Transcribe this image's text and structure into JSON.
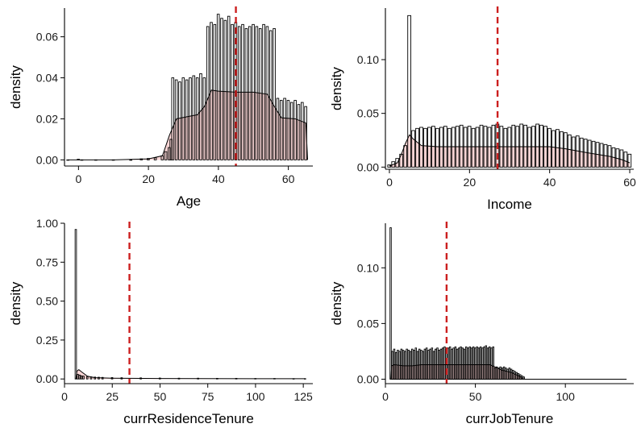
{
  "chart_data": [
    {
      "type": "histogram",
      "panel": "top-left",
      "xlabel": "Age",
      "ylabel": "density",
      "xlim": [
        -4,
        67
      ],
      "ylim": [
        -0.003,
        0.074
      ],
      "xticks": [
        0,
        20,
        40,
        60
      ],
      "yticks": [
        0.0,
        0.02,
        0.04,
        0.06
      ],
      "ytick_labels": [
        "0.00",
        "0.02",
        "0.04",
        "0.06"
      ],
      "bin_width": 0.7,
      "mean_line": 45,
      "hist_bins": [
        [
          -3,
          0
        ],
        [
          0,
          0.0003
        ],
        [
          1,
          0
        ],
        [
          5,
          0
        ],
        [
          10,
          0
        ],
        [
          15,
          0
        ],
        [
          18,
          0.0005
        ],
        [
          20,
          0.0007
        ],
        [
          22,
          0.001
        ],
        [
          24,
          0.002
        ],
        [
          25,
          0.004
        ],
        [
          26,
          0.006
        ],
        [
          26.5,
          0.01
        ],
        [
          27,
          0.04
        ],
        [
          28,
          0.039
        ],
        [
          29,
          0.038
        ],
        [
          30,
          0.04
        ],
        [
          31,
          0.039
        ],
        [
          32,
          0.04
        ],
        [
          33,
          0.041
        ],
        [
          34,
          0.04
        ],
        [
          35,
          0.042
        ],
        [
          36,
          0.04
        ],
        [
          37,
          0.065
        ],
        [
          38,
          0.067
        ],
        [
          39,
          0.066
        ],
        [
          40,
          0.071
        ],
        [
          41,
          0.069
        ],
        [
          42,
          0.068
        ],
        [
          43,
          0.07
        ],
        [
          44,
          0.066
        ],
        [
          45,
          0.067
        ],
        [
          46,
          0.065
        ],
        [
          47,
          0.066
        ],
        [
          48,
          0.064
        ],
        [
          49,
          0.065
        ],
        [
          50,
          0.066
        ],
        [
          51,
          0.065
        ],
        [
          52,
          0.064
        ],
        [
          53,
          0.066
        ],
        [
          54,
          0.065
        ],
        [
          55,
          0.063
        ],
        [
          56,
          0.064
        ],
        [
          57,
          0.03
        ],
        [
          58,
          0.029
        ],
        [
          59,
          0.03
        ],
        [
          60,
          0.029
        ],
        [
          61,
          0.028
        ],
        [
          62,
          0.029
        ],
        [
          63,
          0.027
        ],
        [
          64,
          0.028
        ],
        [
          65,
          0.026
        ]
      ],
      "density_curve": [
        [
          -3,
          0
        ],
        [
          10,
          0
        ],
        [
          20,
          0.0005
        ],
        [
          24,
          0.002
        ],
        [
          26,
          0.012
        ],
        [
          28,
          0.02
        ],
        [
          31,
          0.021
        ],
        [
          34,
          0.022
        ],
        [
          36,
          0.026
        ],
        [
          38,
          0.034
        ],
        [
          40,
          0.0335
        ],
        [
          45,
          0.033
        ],
        [
          50,
          0.033
        ],
        [
          54,
          0.032
        ],
        [
          56,
          0.026
        ],
        [
          58,
          0.0205
        ],
        [
          62,
          0.02
        ],
        [
          65,
          0.018
        ],
        [
          65.5,
          0
        ]
      ]
    },
    {
      "type": "histogram",
      "panel": "top-right",
      "xlabel": "Income",
      "ylabel": "density",
      "xlim": [
        -1,
        61
      ],
      "ylim": [
        -0.002,
        0.148
      ],
      "xticks": [
        0,
        20,
        40,
        60
      ],
      "yticks": [
        0.0,
        0.05,
        0.1
      ],
      "ytick_labels": [
        "0.00",
        "0.05",
        "0.10"
      ],
      "bin_width": 0.85,
      "mean_line": 27,
      "hist_bins": [
        [
          0,
          0.002
        ],
        [
          1,
          0.005
        ],
        [
          2,
          0.008
        ],
        [
          3,
          0.012
        ],
        [
          4,
          0.02
        ],
        [
          5,
          0.141
        ],
        [
          6,
          0.034
        ],
        [
          7,
          0.036
        ],
        [
          8,
          0.037
        ],
        [
          9,
          0.036
        ],
        [
          10,
          0.037
        ],
        [
          11,
          0.038
        ],
        [
          12,
          0.036
        ],
        [
          13,
          0.037
        ],
        [
          14,
          0.038
        ],
        [
          15,
          0.036
        ],
        [
          16,
          0.037
        ],
        [
          17,
          0.038
        ],
        [
          18,
          0.039
        ],
        [
          19,
          0.037
        ],
        [
          20,
          0.038
        ],
        [
          21,
          0.036
        ],
        [
          22,
          0.037
        ],
        [
          23,
          0.039
        ],
        [
          24,
          0.038
        ],
        [
          25,
          0.037
        ],
        [
          26,
          0.039
        ],
        [
          27,
          0.04
        ],
        [
          28,
          0.038
        ],
        [
          29,
          0.036
        ],
        [
          30,
          0.037
        ],
        [
          31,
          0.039
        ],
        [
          32,
          0.038
        ],
        [
          33,
          0.04
        ],
        [
          34,
          0.039
        ],
        [
          35,
          0.037
        ],
        [
          36,
          0.038
        ],
        [
          37,
          0.04
        ],
        [
          38,
          0.039
        ],
        [
          39,
          0.038
        ],
        [
          40,
          0.036
        ],
        [
          41,
          0.034
        ],
        [
          42,
          0.035
        ],
        [
          43,
          0.033
        ],
        [
          44,
          0.032
        ],
        [
          45,
          0.03
        ],
        [
          46,
          0.028
        ],
        [
          47,
          0.029
        ],
        [
          48,
          0.027
        ],
        [
          49,
          0.026
        ],
        [
          50,
          0.025
        ],
        [
          51,
          0.024
        ],
        [
          52,
          0.023
        ],
        [
          53,
          0.022
        ],
        [
          54,
          0.021
        ],
        [
          55,
          0.02
        ],
        [
          56,
          0.018
        ],
        [
          57,
          0.017
        ],
        [
          58,
          0.016
        ],
        [
          59,
          0.014
        ],
        [
          60,
          0.012
        ]
      ],
      "density_curve": [
        [
          0,
          0.001
        ],
        [
          2,
          0.004
        ],
        [
          3,
          0.012
        ],
        [
          4,
          0.022
        ],
        [
          5,
          0.03
        ],
        [
          6,
          0.026
        ],
        [
          8,
          0.02
        ],
        [
          12,
          0.019
        ],
        [
          20,
          0.019
        ],
        [
          30,
          0.019
        ],
        [
          40,
          0.019
        ],
        [
          44,
          0.017
        ],
        [
          50,
          0.013
        ],
        [
          55,
          0.01
        ],
        [
          58,
          0.007
        ],
        [
          60,
          0.004
        ]
      ]
    },
    {
      "type": "histogram",
      "panel": "bottom-left",
      "xlabel": "currResidenceTenure",
      "ylabel": "density",
      "xlim": [
        0,
        130
      ],
      "ylim": [
        -0.03,
        1.0
      ],
      "xticks": [
        0,
        25,
        50,
        75,
        100,
        125
      ],
      "yticks": [
        0.0,
        0.25,
        0.5,
        0.75,
        1.0
      ],
      "ytick_labels": [
        "0.00",
        "0.25",
        "0.50",
        "0.75",
        "1.00"
      ],
      "bin_width": 0.9,
      "mean_line": 34,
      "hist_bins": [
        [
          6,
          0.96
        ],
        [
          7,
          0.03
        ],
        [
          8,
          0.025
        ],
        [
          9,
          0.02
        ],
        [
          10,
          0.018
        ],
        [
          12,
          0.015
        ],
        [
          14,
          0.013
        ],
        [
          16,
          0.012
        ],
        [
          18,
          0.011
        ],
        [
          20,
          0.01
        ],
        [
          25,
          0.009
        ],
        [
          30,
          0.008
        ],
        [
          40,
          0.007
        ],
        [
          50,
          0.006
        ],
        [
          60,
          0.005
        ],
        [
          70,
          0.005
        ],
        [
          80,
          0.004
        ],
        [
          90,
          0.004
        ],
        [
          100,
          0.003
        ],
        [
          110,
          0.003
        ],
        [
          120,
          0.002
        ],
        [
          126,
          0.002
        ]
      ],
      "density_curve": [
        [
          6,
          0.0
        ],
        [
          6.5,
          0.05
        ],
        [
          7.5,
          0.06
        ],
        [
          9,
          0.045
        ],
        [
          12,
          0.018
        ],
        [
          16,
          0.008
        ],
        [
          25,
          0.005
        ],
        [
          50,
          0.003
        ],
        [
          100,
          0.002
        ],
        [
          126,
          0.002
        ]
      ]
    },
    {
      "type": "histogram",
      "panel": "bottom-right",
      "xlabel": "currJobTenure",
      "ylabel": "density",
      "xlim": [
        0,
        138
      ],
      "ylim": [
        -0.004,
        0.14
      ],
      "xticks": [
        0,
        50,
        100
      ],
      "yticks": [
        0.0,
        0.05,
        0.1
      ],
      "ytick_labels": [
        "0.00",
        "0.05",
        "0.10"
      ],
      "bin_width": 0.9,
      "mean_line": 34,
      "hist_bins": [
        [
          3,
          0.136
        ],
        [
          4,
          0.025
        ],
        [
          5,
          0.027
        ],
        [
          6,
          0.024
        ],
        [
          7,
          0.026
        ],
        [
          8,
          0.025
        ],
        [
          9,
          0.027
        ],
        [
          10,
          0.026
        ],
        [
          11,
          0.025
        ],
        [
          12,
          0.027
        ],
        [
          13,
          0.026
        ],
        [
          14,
          0.025
        ],
        [
          15,
          0.027
        ],
        [
          16,
          0.026
        ],
        [
          17,
          0.028
        ],
        [
          18,
          0.025
        ],
        [
          19,
          0.027
        ],
        [
          20,
          0.026
        ],
        [
          21,
          0.025
        ],
        [
          22,
          0.027
        ],
        [
          23,
          0.028
        ],
        [
          24,
          0.026
        ],
        [
          25,
          0.027
        ],
        [
          26,
          0.028
        ],
        [
          27,
          0.025
        ],
        [
          28,
          0.027
        ],
        [
          29,
          0.028
        ],
        [
          30,
          0.026
        ],
        [
          31,
          0.027
        ],
        [
          32,
          0.028
        ],
        [
          33,
          0.029
        ],
        [
          34,
          0.027
        ],
        [
          35,
          0.028
        ],
        [
          36,
          0.029
        ],
        [
          37,
          0.027
        ],
        [
          38,
          0.028
        ],
        [
          39,
          0.029
        ],
        [
          40,
          0.027
        ],
        [
          41,
          0.028
        ],
        [
          42,
          0.029
        ],
        [
          43,
          0.028
        ],
        [
          44,
          0.027
        ],
        [
          45,
          0.029
        ],
        [
          46,
          0.028
        ],
        [
          47,
          0.029
        ],
        [
          48,
          0.028
        ],
        [
          49,
          0.029
        ],
        [
          50,
          0.028
        ],
        [
          51,
          0.029
        ],
        [
          52,
          0.028
        ],
        [
          53,
          0.029
        ],
        [
          54,
          0.028
        ],
        [
          55,
          0.029
        ],
        [
          56,
          0.03
        ],
        [
          57,
          0.028
        ],
        [
          58,
          0.029
        ],
        [
          59,
          0.028
        ],
        [
          60,
          0.029
        ],
        [
          61,
          0.01
        ],
        [
          62,
          0.011
        ],
        [
          63,
          0.01
        ],
        [
          64,
          0.011
        ],
        [
          65,
          0.01
        ],
        [
          66,
          0.011
        ],
        [
          67,
          0.01
        ],
        [
          68,
          0.009
        ],
        [
          69,
          0.01
        ],
        [
          70,
          0.009
        ],
        [
          71,
          0.008
        ],
        [
          72,
          0.007
        ],
        [
          73,
          0.006
        ],
        [
          74,
          0.005
        ],
        [
          75,
          0.004
        ],
        [
          76,
          0.003
        ],
        [
          77,
          0.002
        ]
      ],
      "density_curve": [
        [
          3,
          0.0
        ],
        [
          3.5,
          0.012
        ],
        [
          5,
          0.013
        ],
        [
          10,
          0.012
        ],
        [
          15,
          0.012
        ],
        [
          20,
          0.013
        ],
        [
          30,
          0.013
        ],
        [
          40,
          0.013
        ],
        [
          50,
          0.013
        ],
        [
          58,
          0.013
        ],
        [
          61,
          0.011
        ],
        [
          65,
          0.008
        ],
        [
          70,
          0.006
        ],
        [
          74,
          0.003
        ],
        [
          77,
          0.0
        ],
        [
          134,
          0.0
        ]
      ],
      "baseline_end": 134
    }
  ]
}
